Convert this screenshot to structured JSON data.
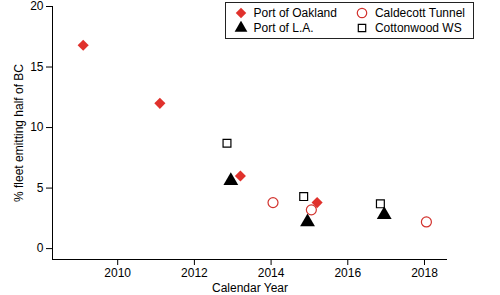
{
  "chart_data": {
    "type": "scatter",
    "x_label": "Calendar Year",
    "y_label": "% fleet emitting half of BC",
    "xlim": [
      2008.3,
      2018.6
    ],
    "xticks": [
      2010,
      2012,
      2014,
      2016,
      2018
    ],
    "ylim": [
      -0.9,
      20
    ],
    "yticks": [
      0,
      5,
      10,
      15,
      20
    ],
    "legend": "top-right",
    "series": [
      {
        "name": "Port of Oakland",
        "color": "#e0312c",
        "marker": "diamond",
        "x": [
          2009.1,
          2011.1,
          2013.2,
          2015.2
        ],
        "values": [
          16.8,
          12.0,
          6.0,
          3.8
        ]
      },
      {
        "name": "Port of L.A.",
        "color": "#000000",
        "marker": "triangle",
        "x": [
          2012.95,
          2014.95,
          2016.95
        ],
        "values": [
          5.6,
          2.2,
          2.8
        ]
      },
      {
        "name": "Caldecott Tunnel",
        "color": "#d2322d",
        "marker": "circle-open",
        "x": [
          2014.05,
          2015.05,
          2018.05
        ],
        "values": [
          3.8,
          3.2,
          2.2
        ]
      },
      {
        "name": "Cottonwood WS",
        "color": "#000000",
        "marker": "square-open",
        "x": [
          2012.85,
          2014.85,
          2016.85
        ],
        "values": [
          8.7,
          4.3,
          3.7
        ]
      }
    ]
  }
}
